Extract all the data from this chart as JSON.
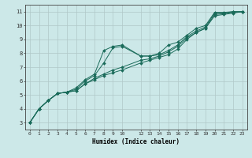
{
  "xlabel": "Humidex (Indice chaleur)",
  "ylabel": "",
  "bg_color": "#cce8e8",
  "grid_color": "#b0c8c8",
  "line_color": "#1a6b5a",
  "xlim": [
    -0.5,
    23.5
  ],
  "ylim": [
    2.5,
    11.5
  ],
  "xticks": [
    0,
    1,
    2,
    3,
    4,
    5,
    6,
    7,
    8,
    9,
    10,
    12,
    13,
    14,
    15,
    16,
    17,
    18,
    19,
    20,
    21,
    22,
    23
  ],
  "yticks": [
    3,
    4,
    5,
    6,
    7,
    8,
    9,
    10,
    11
  ],
  "line1_x": [
    0,
    1,
    2,
    3,
    4,
    5,
    6,
    7,
    8,
    9,
    10,
    12,
    13,
    14,
    15,
    16,
    17,
    18,
    19,
    20,
    21,
    22,
    23
  ],
  "line1_y": [
    3.0,
    4.0,
    4.6,
    5.1,
    5.2,
    5.5,
    6.1,
    6.5,
    8.2,
    8.5,
    8.6,
    7.8,
    7.8,
    8.0,
    8.6,
    8.8,
    9.3,
    9.8,
    10.0,
    10.95,
    10.95,
    11.0,
    11.0
  ],
  "line2_x": [
    0,
    1,
    2,
    3,
    4,
    5,
    6,
    7,
    8,
    9,
    10,
    12,
    13,
    14,
    15,
    16,
    17,
    18,
    19,
    20,
    21,
    22,
    23
  ],
  "line2_y": [
    3.0,
    4.0,
    4.6,
    5.1,
    5.2,
    5.4,
    6.0,
    6.4,
    7.3,
    8.4,
    8.5,
    7.8,
    7.8,
    7.9,
    8.2,
    8.6,
    9.2,
    9.6,
    9.9,
    10.9,
    10.9,
    11.0,
    11.0
  ],
  "line3_x": [
    0,
    1,
    2,
    3,
    4,
    5,
    6,
    7,
    8,
    9,
    10,
    12,
    13,
    14,
    15,
    16,
    17,
    18,
    19,
    20,
    21,
    22,
    23
  ],
  "line3_y": [
    3.0,
    4.0,
    4.6,
    5.1,
    5.2,
    5.3,
    5.8,
    6.2,
    6.5,
    6.8,
    7.0,
    7.5,
    7.6,
    7.8,
    8.1,
    8.5,
    9.1,
    9.5,
    9.8,
    10.8,
    10.85,
    10.95,
    11.0
  ],
  "line4_x": [
    0,
    1,
    2,
    3,
    4,
    5,
    6,
    7,
    8,
    9,
    10,
    12,
    13,
    14,
    15,
    16,
    17,
    18,
    19,
    20,
    21,
    22,
    23
  ],
  "line4_y": [
    3.0,
    4.0,
    4.6,
    5.1,
    5.2,
    5.3,
    5.8,
    6.1,
    6.4,
    6.6,
    6.8,
    7.3,
    7.5,
    7.7,
    7.9,
    8.3,
    9.0,
    9.5,
    9.8,
    10.7,
    10.8,
    10.9,
    11.0
  ]
}
